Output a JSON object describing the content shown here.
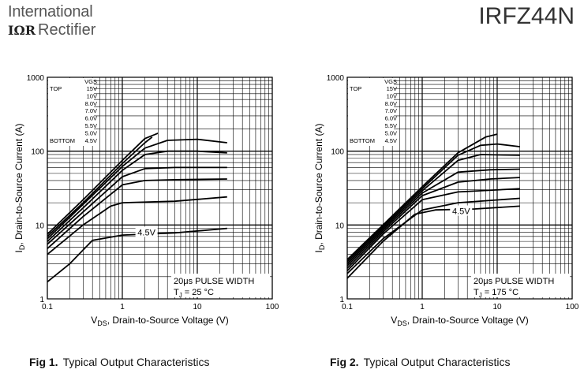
{
  "header": {
    "brand_line1": "International",
    "brand_logo": "IΩR",
    "brand_line2": "Rectifier",
    "part_number": "IRFZ44N"
  },
  "captions": [
    {
      "fig": "Fig 1.",
      "text": "Typical Output Characteristics"
    },
    {
      "fig": "Fig 2.",
      "text": "Typical Output Characteristics"
    }
  ],
  "chart_data": [
    {
      "type": "line",
      "log_x": true,
      "log_y": true,
      "xlim": [
        0.1,
        100
      ],
      "ylim": [
        1,
        1000
      ],
      "grid": true,
      "xlabel_main": "V",
      "xlabel_sub": "DS",
      "xlabel_rest": ", Drain-to-Source Voltage (V)",
      "ylabel_main": "I",
      "ylabel_sub": "D",
      "ylabel_rest": ", Drain-to-Source Current (A)",
      "x_ticks": [
        "0.1",
        "1",
        "10",
        "100"
      ],
      "y_ticks": [
        "1",
        "10",
        "100",
        "1000"
      ],
      "legend_title": "VGS",
      "legend_top": "TOP",
      "legend_bottom": "BOTTOM",
      "legend_values": [
        "15V",
        "10V",
        "8.0V",
        "7.0V",
        "6.0V",
        "5.5V",
        "5.0V",
        "4.5V"
      ],
      "annot_pulse": "20μs PULSE WIDTH",
      "annot_tj_main": "T",
      "annot_tj_sub": "J",
      "annot_tj_rest": " = 25 °C",
      "curve_label": "4.5V",
      "curve_label_at": {
        "x": 2.1,
        "y": 8.0
      },
      "series": [
        {
          "values": [
            [
              0.1,
              7.5
            ],
            [
              0.3,
              22
            ],
            [
              1,
              75
            ],
            [
              2,
              148
            ],
            [
              3,
              175
            ]
          ]
        },
        {
          "values": [
            [
              0.1,
              7.0
            ],
            [
              0.3,
              20
            ],
            [
              1,
              68
            ],
            [
              2,
              130
            ],
            [
              2.5,
              155
            ]
          ]
        },
        {
          "values": [
            [
              0.1,
              6.5
            ],
            [
              0.3,
              19
            ],
            [
              1,
              62
            ],
            [
              2,
              110
            ],
            [
              4,
              140
            ],
            [
              10,
              145
            ],
            [
              25,
              130
            ]
          ]
        },
        {
          "values": [
            [
              0.1,
              6.0
            ],
            [
              0.3,
              17
            ],
            [
              1,
              55
            ],
            [
              2,
              90
            ],
            [
              4,
              100
            ],
            [
              10,
              100
            ],
            [
              25,
              95
            ]
          ]
        },
        {
          "values": [
            [
              0.1,
              5.5
            ],
            [
              0.3,
              15
            ],
            [
              1,
              45
            ],
            [
              2,
              58
            ],
            [
              5,
              60
            ],
            [
              25,
              60
            ]
          ]
        },
        {
          "values": [
            [
              0.1,
              4.8
            ],
            [
              0.3,
              13
            ],
            [
              1,
              35
            ],
            [
              2,
              40
            ],
            [
              5,
              41
            ],
            [
              25,
              42
            ]
          ]
        },
        {
          "values": [
            [
              0.1,
              4.0
            ],
            [
              0.3,
              10
            ],
            [
              0.7,
              18
            ],
            [
              1,
              20
            ],
            [
              5,
              21
            ],
            [
              25,
              24
            ]
          ]
        },
        {
          "values": [
            [
              0.1,
              1.7
            ],
            [
              0.2,
              3
            ],
            [
              0.4,
              6.2
            ],
            [
              1,
              7.3
            ],
            [
              5,
              7.8
            ],
            [
              25,
              9
            ]
          ]
        }
      ]
    },
    {
      "type": "line",
      "log_x": true,
      "log_y": true,
      "xlim": [
        0.1,
        100
      ],
      "ylim": [
        1,
        1000
      ],
      "grid": true,
      "xlabel_main": "V",
      "xlabel_sub": "DS",
      "xlabel_rest": ", Drain-to-Source Voltage (V)",
      "ylabel_main": "I",
      "ylabel_sub": "D",
      "ylabel_rest": ", Drain-to-Source Current (A)",
      "x_ticks": [
        "0.1",
        "1",
        "10",
        "100"
      ],
      "y_ticks": [
        "1",
        "10",
        "100",
        "1000"
      ],
      "legend_title": "VGS",
      "legend_top": "TOP",
      "legend_bottom": "BOTTOM",
      "legend_values": [
        "15V",
        "10V",
        "8.0V",
        "7.0V",
        "6.0V",
        "5.5V",
        "5.0V",
        "4.5V"
      ],
      "annot_pulse": "20μs PULSE WIDTH",
      "annot_tj_main": "T",
      "annot_tj_sub": "J",
      "annot_tj_rest": " = 175 °C",
      "curve_label": "4.5V",
      "curve_label_at": {
        "x": 3.3,
        "y": 15.5
      },
      "series": [
        {
          "values": [
            [
              0.1,
              3.4
            ],
            [
              0.3,
              10
            ],
            [
              1,
              33
            ],
            [
              3,
              95
            ],
            [
              7,
              155
            ],
            [
              10,
              170
            ]
          ]
        },
        {
          "values": [
            [
              0.1,
              3.2
            ],
            [
              0.3,
              9.5
            ],
            [
              1,
              31
            ],
            [
              3,
              88
            ],
            [
              6,
              120
            ],
            [
              10,
              125
            ],
            [
              20,
              115
            ]
          ]
        },
        {
          "values": [
            [
              0.1,
              3.0
            ],
            [
              0.3,
              9
            ],
            [
              1,
              29
            ],
            [
              3,
              75
            ],
            [
              6,
              90
            ],
            [
              20,
              88
            ]
          ]
        },
        {
          "values": [
            [
              0.1,
              2.8
            ],
            [
              0.3,
              8.5
            ],
            [
              1,
              27
            ],
            [
              3,
              52
            ],
            [
              8,
              56
            ],
            [
              20,
              57
            ]
          ]
        },
        {
          "values": [
            [
              0.1,
              2.6
            ],
            [
              0.3,
              8
            ],
            [
              1,
              25
            ],
            [
              3,
              38
            ],
            [
              8,
              42
            ],
            [
              20,
              44
            ]
          ]
        },
        {
          "values": [
            [
              0.1,
              2.4
            ],
            [
              0.3,
              7.5
            ],
            [
              1,
              22
            ],
            [
              3,
              28
            ],
            [
              20,
              31
            ]
          ]
        },
        {
          "values": [
            [
              0.1,
              2.2
            ],
            [
              0.3,
              6.5
            ],
            [
              1,
              16
            ],
            [
              3,
              20
            ],
            [
              20,
              23
            ]
          ]
        },
        {
          "values": [
            [
              0.1,
              1.9
            ],
            [
              0.3,
              6
            ],
            [
              0.8,
              14
            ],
            [
              1.5,
              16
            ],
            [
              5,
              16.5
            ],
            [
              20,
              18
            ]
          ]
        }
      ]
    }
  ]
}
